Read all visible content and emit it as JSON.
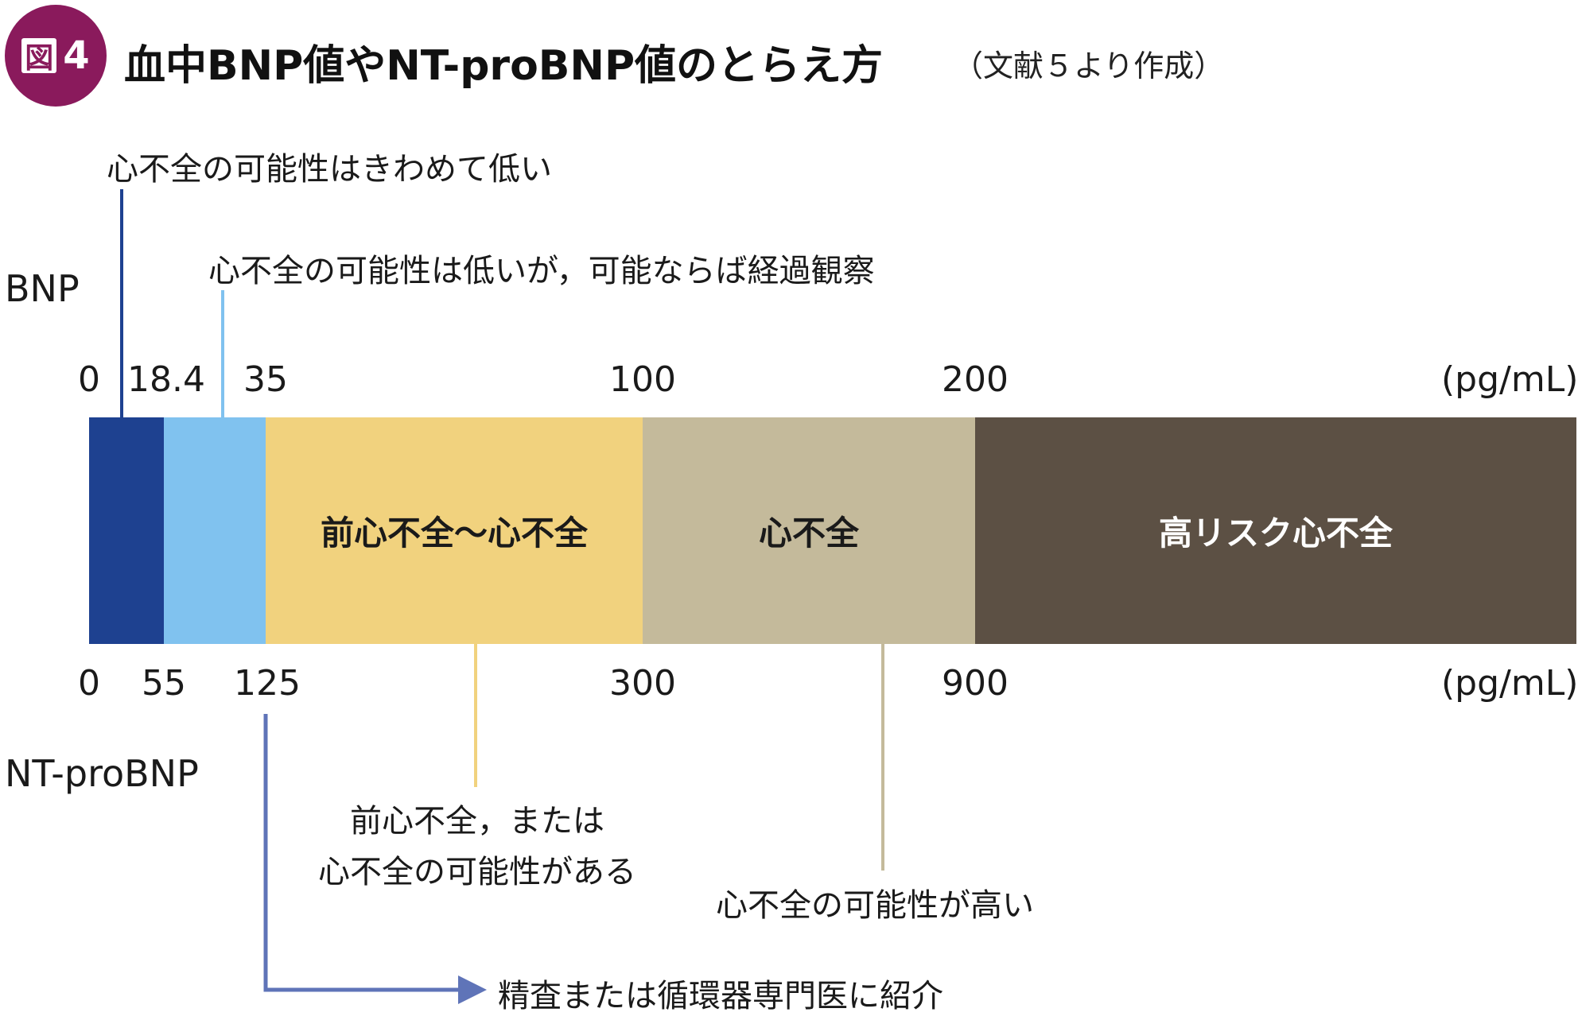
{
  "header": {
    "badge_label": "図",
    "badge_number": "4",
    "title": "血中BNP値やNT-proBNP値のとらえ方",
    "source_note": "（文献５より作成）"
  },
  "axes": {
    "bnp": {
      "label": "BNP",
      "unit": "(pg/mL)",
      "ticks": [
        "0",
        "18.4",
        "35",
        "100",
        "200"
      ]
    },
    "ntprobnp": {
      "label": "NT-proBNP",
      "unit": "(pg/mL)",
      "ticks": [
        "0",
        "55",
        "125",
        "300",
        "900"
      ]
    }
  },
  "segments": [
    {
      "label": "",
      "color": "#1e4190",
      "text_color": "#ffffff"
    },
    {
      "label": "",
      "color": "#80c2ef",
      "text_color": "#1a1a1a"
    },
    {
      "label": "前心不全～心不全",
      "color": "#f1d27e",
      "text_color": "#1a1a1a"
    },
    {
      "label": "心不全",
      "color": "#c4ba9b",
      "text_color": "#1a1a1a"
    },
    {
      "label": "高リスク心不全",
      "color": "#5c5044",
      "text_color": "#ffffff"
    }
  ],
  "annotations": {
    "very_low": "心不全の可能性はきわめて低い",
    "low": "心不全の可能性は低いが，可能ならば経過観察",
    "possible_line1": "前心不全，または",
    "possible_line2": "心不全の可能性がある",
    "high": "心不全の可能性が高い",
    "refer": "精査または循環器専門医に紹介"
  },
  "colors": {
    "badge": "#8a1a5c",
    "line_dark_blue": "#1e4190",
    "line_light_blue": "#80c2ef",
    "line_yellow": "#f1d27e",
    "line_beige": "#c4ba9b",
    "arrow_blue": "#5f74b8"
  }
}
